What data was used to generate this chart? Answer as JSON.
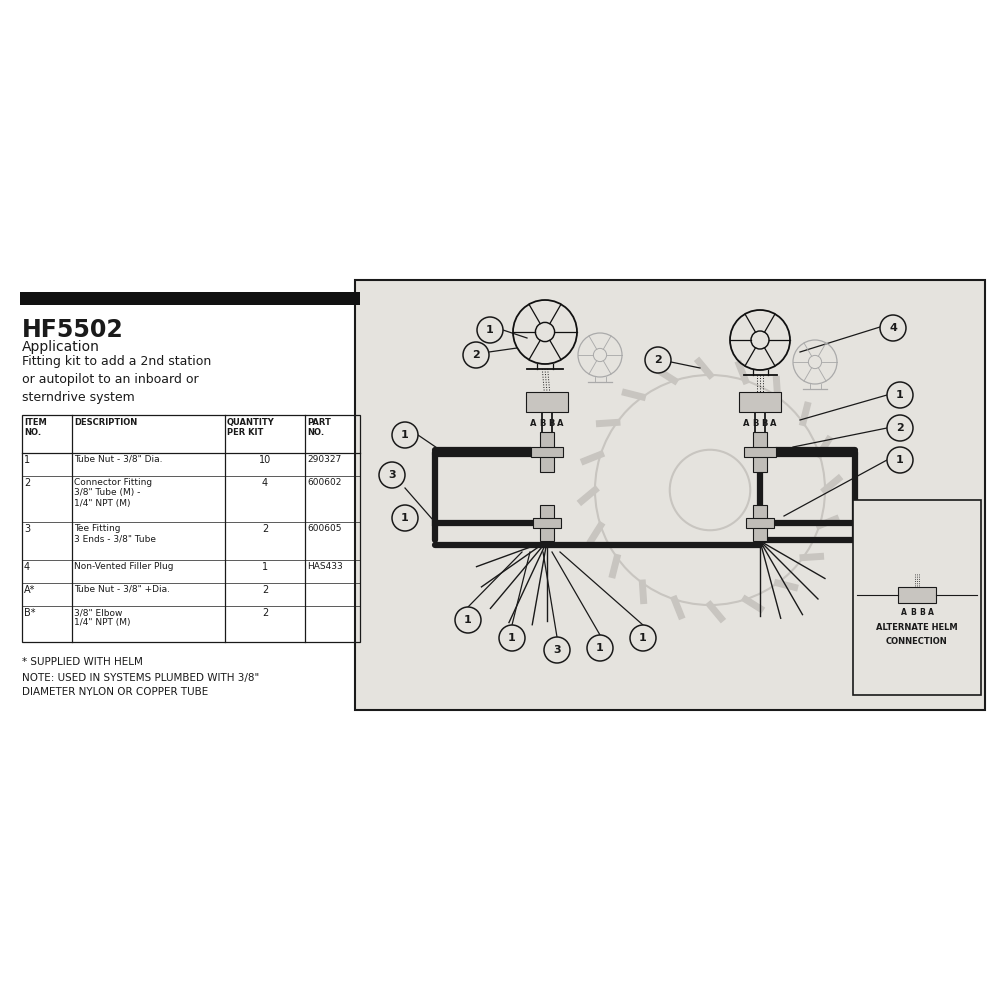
{
  "bg_color": "#ffffff",
  "content_bg": "#e8e6e2",
  "line_color": "#1a1a1a",
  "gray_line": "#888888",
  "gear_color": "#c8c5c0",
  "title": "HF5502",
  "subtitle": "Application",
  "desc_lines": [
    "Fitting kit to add a 2nd station",
    "or autopilot to an inboard or",
    "sterndrive system"
  ],
  "table_headers_row1": [
    "ITEM",
    "",
    "QUANTITY",
    "PART"
  ],
  "table_headers_row2": [
    "NO.",
    "DESCRIPTION",
    "PER KIT",
    "NO."
  ],
  "table_rows": [
    [
      "1",
      "Tube Nut - 3/8\" Dia.",
      "10",
      "290327"
    ],
    [
      "2",
      "Connector Fitting\n3/8\" Tube (M) -\n1/4\" NPT (M)",
      "4",
      "600602"
    ],
    [
      "3",
      "Tee Fitting\n3 Ends - 3/8\" Tube",
      "2",
      "600605"
    ],
    [
      "4",
      "Non-Vented Filler Plug",
      "1",
      "HAS433"
    ],
    [
      "A*",
      "Tube Nut - 3/8\" +Dia.",
      "2",
      ""
    ],
    [
      "B*",
      "3/8\" Elbow\n1/4\" NPT (M)",
      "2",
      ""
    ]
  ],
  "footnote1": "* SUPPLIED WITH HELM",
  "footnote2": "NOTE: USED IN SYSTEMS PLUMBED WITH 3/8\"",
  "footnote3": "DIAMETER NYLON OR COPPER TUBE",
  "alt_label1": "ALTERNATE HELM",
  "alt_label2": "CONNECTION"
}
